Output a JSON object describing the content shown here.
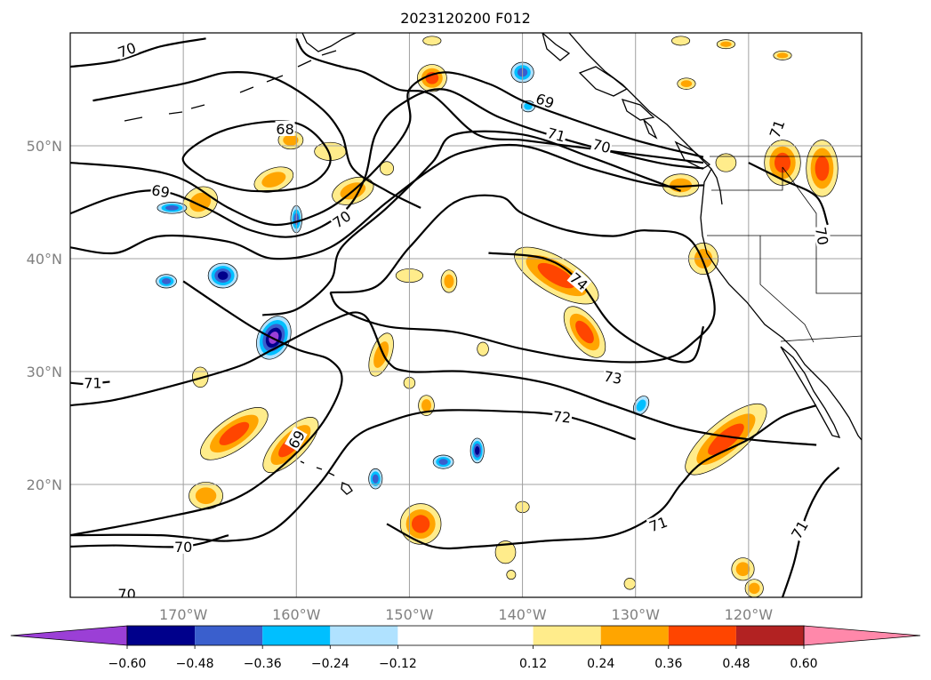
{
  "title": "2023120200 F012",
  "lon_ticks": [
    "170°W",
    "160°W",
    "150°W",
    "140°W",
    "130°W",
    "120°W"
  ],
  "lat_ticks": [
    "50°N",
    "40°N",
    "30°N",
    "20°N"
  ],
  "contour_labels": [
    {
      "text": "70",
      "lon": -175.0,
      "lat": 58.5,
      "rot": -20
    },
    {
      "text": "68",
      "lon": -161.0,
      "lat": 51.5,
      "rot": 0
    },
    {
      "text": "69",
      "lon": -172.0,
      "lat": 46.0,
      "rot": 10
    },
    {
      "text": "70",
      "lon": -156.0,
      "lat": 43.5,
      "rot": -35
    },
    {
      "text": "69",
      "lon": -138.0,
      "lat": 54.0,
      "rot": 20
    },
    {
      "text": "71",
      "lon": -137.0,
      "lat": 51.0,
      "rot": 15
    },
    {
      "text": "70",
      "lon": -133.0,
      "lat": 50.0,
      "rot": 15
    },
    {
      "text": "71",
      "lon": -117.5,
      "lat": 51.5,
      "rot": -70
    },
    {
      "text": "70",
      "lon": -113.5,
      "lat": 42.0,
      "rot": 80
    },
    {
      "text": "74",
      "lon": -135.0,
      "lat": 38.0,
      "rot": 40
    },
    {
      "text": "73",
      "lon": -132.0,
      "lat": 29.5,
      "rot": 10
    },
    {
      "text": "72",
      "lon": -136.5,
      "lat": 26.0,
      "rot": 5
    },
    {
      "text": "71",
      "lon": -178.0,
      "lat": 29.0,
      "rot": 0
    },
    {
      "text": "69",
      "lon": -160.0,
      "lat": 24.0,
      "rot": -60
    },
    {
      "text": "71",
      "lon": -128.0,
      "lat": 16.5,
      "rot": -20
    },
    {
      "text": "71",
      "lon": -115.5,
      "lat": 16.0,
      "rot": -60
    },
    {
      "text": "70",
      "lon": -170.0,
      "lat": 14.5,
      "rot": 0
    },
    {
      "text": "70",
      "lon": -175.0,
      "lat": 10.3,
      "rot": 0
    }
  ],
  "colorbar": {
    "levels": [
      -0.72,
      -0.6,
      -0.48,
      -0.36,
      -0.24,
      -0.12,
      0.12,
      0.24,
      0.36,
      0.48,
      0.6,
      0.72
    ],
    "colors": [
      "#9b3fd6",
      "#00008b",
      "#3a5fcd",
      "#00bfff",
      "#b0e2ff",
      "#ffffff",
      "#ffec8b",
      "#ffa500",
      "#ff4500",
      "#b22222",
      "#ff88aa"
    ],
    "extend": "both",
    "tick_labels": [
      "−0.60",
      "−0.48",
      "−0.36",
      "−0.24",
      "−0.12",
      "0.12",
      "0.24",
      "0.36",
      "0.48",
      "0.60"
    ]
  },
  "anomalies": [
    {
      "lon": -168.5,
      "lat": 45.0,
      "level": 2,
      "a": 1.6,
      "b": 1.3,
      "rot": -30
    },
    {
      "lon": -162.0,
      "lat": 47.0,
      "level": 2,
      "a": 1.8,
      "b": 1.0,
      "rot": -20
    },
    {
      "lon": -157.0,
      "lat": 49.5,
      "level": 1,
      "a": 1.4,
      "b": 0.8,
      "rot": 0
    },
    {
      "lon": -160.5,
      "lat": 50.5,
      "level": 2,
      "a": 1.1,
      "b": 0.8,
      "rot": 0
    },
    {
      "lon": -155.0,
      "lat": 46.0,
      "level": 2,
      "a": 1.9,
      "b": 1.1,
      "rot": -20
    },
    {
      "lon": -171.0,
      "lat": 44.5,
      "level": -3,
      "a": 1.3,
      "b": 0.5,
      "rot": 0
    },
    {
      "lon": -160.0,
      "lat": 43.5,
      "level": -3,
      "a": 0.5,
      "b": 1.2,
      "rot": 0
    },
    {
      "lon": -166.5,
      "lat": 38.5,
      "level": -4,
      "a": 1.3,
      "b": 1.1,
      "rot": 0
    },
    {
      "lon": -171.5,
      "lat": 38.0,
      "level": -3,
      "a": 0.9,
      "b": 0.6,
      "rot": 0
    },
    {
      "lon": -162.0,
      "lat": 33.0,
      "level": -5,
      "a": 1.4,
      "b": 2.0,
      "rot": 25
    },
    {
      "lon": -168.5,
      "lat": 29.5,
      "level": 1,
      "a": 0.7,
      "b": 0.9,
      "rot": 0
    },
    {
      "lon": -165.5,
      "lat": 24.5,
      "level": 3,
      "a": 3.5,
      "b": 1.4,
      "rot": -35
    },
    {
      "lon": -160.5,
      "lat": 23.5,
      "level": 3,
      "a": 3.2,
      "b": 1.3,
      "rot": -45
    },
    {
      "lon": -168.0,
      "lat": 19.0,
      "level": 2,
      "a": 1.5,
      "b": 1.2,
      "rot": 0
    },
    {
      "lon": -152.5,
      "lat": 31.5,
      "level": 2,
      "a": 0.9,
      "b": 2.0,
      "rot": 20
    },
    {
      "lon": -150.0,
      "lat": 38.5,
      "level": 1,
      "a": 1.2,
      "b": 0.6,
      "rot": 0
    },
    {
      "lon": -146.5,
      "lat": 38.0,
      "level": 2,
      "a": 0.7,
      "b": 1.0,
      "rot": 0
    },
    {
      "lon": -148.5,
      "lat": 27.0,
      "level": 2,
      "a": 0.7,
      "b": 0.9,
      "rot": 0
    },
    {
      "lon": -149.0,
      "lat": 16.5,
      "level": 3,
      "a": 1.8,
      "b": 1.8,
      "rot": 0
    },
    {
      "lon": -141.5,
      "lat": 14.0,
      "level": 1,
      "a": 0.9,
      "b": 1.0,
      "rot": 0
    },
    {
      "lon": -148.0,
      "lat": 56.0,
      "level": 3,
      "a": 1.3,
      "b": 1.2,
      "rot": 0
    },
    {
      "lon": -144.0,
      "lat": 23.0,
      "level": -4,
      "a": 0.6,
      "b": 1.1,
      "rot": 0
    },
    {
      "lon": -147.0,
      "lat": 22.0,
      "level": -3,
      "a": 0.9,
      "b": 0.6,
      "rot": 0
    },
    {
      "lon": -153.0,
      "lat": 20.5,
      "level": -3,
      "a": 0.6,
      "b": 0.9,
      "rot": 0
    },
    {
      "lon": -140.0,
      "lat": 56.5,
      "level": -3,
      "a": 1.0,
      "b": 0.9,
      "rot": 0
    },
    {
      "lon": -139.5,
      "lat": 53.5,
      "level": -2,
      "a": 0.6,
      "b": 0.5,
      "rot": 0
    },
    {
      "lon": -137.0,
      "lat": 38.5,
      "level": 3,
      "a": 4.2,
      "b": 1.6,
      "rot": 30
    },
    {
      "lon": -134.5,
      "lat": 33.5,
      "level": 3,
      "a": 2.6,
      "b": 1.3,
      "rot": 55
    },
    {
      "lon": -126.0,
      "lat": 46.5,
      "level": 2,
      "a": 1.6,
      "b": 1.0,
      "rot": 0
    },
    {
      "lon": -124.0,
      "lat": 40.0,
      "level": 2,
      "a": 1.3,
      "b": 1.4,
      "rot": 0
    },
    {
      "lon": -122.0,
      "lat": 24.0,
      "level": 3,
      "a": 4.5,
      "b": 1.6,
      "rot": -40
    },
    {
      "lon": -122.0,
      "lat": 48.5,
      "level": 1,
      "a": 0.9,
      "b": 0.8,
      "rot": 0
    },
    {
      "lon": -117.0,
      "lat": 48.5,
      "level": 3,
      "a": 1.6,
      "b": 2.0,
      "rot": 0
    },
    {
      "lon": -113.5,
      "lat": 48.0,
      "level": 3,
      "a": 1.4,
      "b": 2.5,
      "rot": 0
    },
    {
      "lon": -120.5,
      "lat": 12.5,
      "level": 2,
      "a": 1.0,
      "b": 1.0,
      "rot": 0
    },
    {
      "lon": -119.5,
      "lat": 10.8,
      "level": 2,
      "a": 0.8,
      "b": 0.8,
      "rot": 0
    },
    {
      "lon": -140.0,
      "lat": 18.0,
      "level": 1,
      "a": 0.6,
      "b": 0.5,
      "rot": 0
    },
    {
      "lon": -143.5,
      "lat": 32.0,
      "level": 1,
      "a": 0.5,
      "b": 0.6,
      "rot": 0
    },
    {
      "lon": -129.5,
      "lat": 27.0,
      "level": -2,
      "a": 0.6,
      "b": 0.9,
      "rot": 30
    },
    {
      "lon": -130.5,
      "lat": 11.2,
      "level": 1,
      "a": 0.5,
      "b": 0.5,
      "rot": 0
    },
    {
      "lon": -152.0,
      "lat": 48.0,
      "level": 1,
      "a": 0.6,
      "b": 0.6,
      "rot": 0
    },
    {
      "lon": -150.0,
      "lat": 29.0,
      "level": 1,
      "a": 0.5,
      "b": 0.5,
      "rot": 0
    },
    {
      "lon": -141.0,
      "lat": 12.0,
      "level": 1,
      "a": 0.4,
      "b": 0.4,
      "rot": 0
    },
    {
      "lon": -148.0,
      "lat": 59.3,
      "level": 1,
      "a": 0.8,
      "b": 0.4,
      "rot": 0
    },
    {
      "lon": -126.0,
      "lat": 59.3,
      "level": 1,
      "a": 0.8,
      "b": 0.4,
      "rot": 0
    },
    {
      "lon": -122.0,
      "lat": 59.0,
      "level": 2,
      "a": 0.8,
      "b": 0.4,
      "rot": 0
    },
    {
      "lon": -117.0,
      "lat": 58.0,
      "level": 2,
      "a": 0.8,
      "b": 0.4,
      "rot": 0
    },
    {
      "lon": -125.5,
      "lat": 55.5,
      "level": 2,
      "a": 0.8,
      "b": 0.5,
      "rot": 0
    }
  ],
  "contours": [
    {
      "value": 70,
      "pts": [
        [
          -180,
          57.0
        ],
        [
          -176,
          57.5
        ],
        [
          -172,
          58.8
        ],
        [
          -168,
          59.5
        ]
      ]
    },
    {
      "value": 70,
      "pts": [
        [
          -160,
          59.5
        ],
        [
          -159,
          58.0
        ],
        [
          -156,
          57.0
        ],
        [
          -154,
          56.5
        ],
        [
          -151,
          55.0
        ],
        [
          -148,
          54.5
        ],
        [
          -144,
          51.0
        ],
        [
          -140,
          50.5
        ],
        [
          -136,
          50.0
        ],
        [
          -132,
          49.5
        ],
        [
          -128,
          49.0
        ],
        [
          -124,
          48.5
        ]
      ]
    },
    {
      "value": 69,
      "pts": [
        [
          -178,
          54.0
        ],
        [
          -170,
          55.5
        ],
        [
          -166,
          56.5
        ],
        [
          -162,
          56.0
        ],
        [
          -158,
          53.5
        ],
        [
          -156,
          51.0
        ],
        [
          -155,
          48.0
        ],
        [
          -152,
          46.0
        ],
        [
          -149,
          44.5
        ]
      ]
    },
    {
      "value": 69,
      "pts": [
        [
          -180,
          48.5
        ],
        [
          -174,
          48.0
        ],
        [
          -170,
          47.0
        ],
        [
          -166,
          44.5
        ],
        [
          -162,
          43.0
        ],
        [
          -158,
          44.0
        ],
        [
          -155,
          46.0
        ],
        [
          -152,
          49.0
        ],
        [
          -150,
          52.0
        ],
        [
          -150,
          55.0
        ],
        [
          -147,
          56.5
        ],
        [
          -143,
          55.5
        ],
        [
          -140,
          54.0
        ],
        [
          -136,
          52.5
        ],
        [
          -130,
          50.5
        ],
        [
          -124,
          49.0
        ]
      ]
    },
    {
      "value": 68,
      "pts": [
        [
          -168,
          47.0
        ],
        [
          -170,
          49.0
        ],
        [
          -166,
          51.5
        ],
        [
          -160,
          52.0
        ],
        [
          -157,
          49.0
        ],
        [
          -159,
          46.5
        ],
        [
          -164,
          46.0
        ],
        [
          -168,
          47.0
        ]
      ]
    },
    {
      "value": 70,
      "pts": [
        [
          -180,
          44.0
        ],
        [
          -176,
          45.5
        ],
        [
          -172,
          46.0
        ],
        [
          -168,
          44.5
        ],
        [
          -164,
          42.5
        ],
        [
          -160,
          42.0
        ],
        [
          -156,
          44.0
        ],
        [
          -154,
          47.0
        ],
        [
          -153,
          51.0
        ],
        [
          -151,
          53.5
        ],
        [
          -147,
          55.0
        ],
        [
          -142,
          52.5
        ],
        [
          -136,
          50.5
        ],
        [
          -128,
          48.5
        ],
        [
          -124,
          48.0
        ]
      ]
    },
    {
      "value": 71,
      "pts": [
        [
          -180,
          41.0
        ],
        [
          -176,
          40.5
        ],
        [
          -172,
          42.0
        ],
        [
          -166,
          41.5
        ],
        [
          -162,
          40.0
        ],
        [
          -157,
          41.0
        ],
        [
          -152,
          45.0
        ],
        [
          -148,
          48.0
        ],
        [
          -145,
          49.5
        ],
        [
          -140,
          50.0
        ],
        [
          -134,
          48.0
        ],
        [
          -128,
          46.5
        ],
        [
          -124,
          46.5
        ]
      ]
    },
    {
      "value": 71,
      "pts": [
        [
          -170,
          38.0
        ],
        [
          -164,
          34.0
        ],
        [
          -160,
          32.0
        ],
        [
          -157,
          31.0
        ],
        [
          -156,
          29.0
        ],
        [
          -158,
          25.0
        ],
        [
          -162,
          21.0
        ],
        [
          -166,
          18.5
        ],
        [
          -172,
          17.0
        ],
        [
          -180,
          15.5
        ]
      ]
    },
    {
      "value": 72,
      "pts": [
        [
          -180,
          27.0
        ],
        [
          -176,
          27.5
        ],
        [
          -170,
          29.0
        ],
        [
          -165,
          30.5
        ],
        [
          -162,
          32.0
        ],
        [
          -157,
          34.5
        ],
        [
          -154,
          35.0
        ],
        [
          -152,
          31.0
        ],
        [
          -150,
          30.0
        ],
        [
          -145,
          30.0
        ],
        [
          -138,
          29.0
        ],
        [
          -132,
          27.0
        ],
        [
          -126,
          25.0
        ],
        [
          -120,
          24.0
        ],
        [
          -114,
          23.5
        ]
      ]
    },
    {
      "value": 73,
      "pts": [
        [
          -157,
          37.0
        ],
        [
          -153,
          37.5
        ],
        [
          -150,
          41.0
        ],
        [
          -146,
          45.0
        ],
        [
          -142,
          45.5
        ],
        [
          -140,
          44.0
        ],
        [
          -136,
          42.5
        ],
        [
          -132,
          42.0
        ],
        [
          -129,
          42.5
        ],
        [
          -125,
          41.5
        ],
        [
          -123,
          35.5
        ],
        [
          -125,
          32.5
        ],
        [
          -128,
          31.0
        ],
        [
          -134,
          31.0
        ],
        [
          -140,
          32.0
        ],
        [
          -146,
          33.5
        ],
        [
          -152,
          34.0
        ],
        [
          -156,
          35.5
        ],
        [
          -157,
          37.0
        ]
      ]
    },
    {
      "value": 72,
      "pts": [
        [
          -163,
          35.0
        ],
        [
          -160,
          35.5
        ],
        [
          -157,
          38.0
        ],
        [
          -156,
          41.0
        ],
        [
          -152,
          44.5
        ],
        [
          -148,
          48.5
        ],
        [
          -146,
          51.0
        ],
        [
          -140,
          51.0
        ],
        [
          -134,
          49.0
        ],
        [
          -130,
          47.5
        ],
        [
          -126,
          46.0
        ]
      ]
    },
    {
      "value": 74,
      "pts": [
        [
          -143,
          40.5
        ],
        [
          -138,
          40.0
        ],
        [
          -135,
          38.0
        ],
        [
          -132,
          34.0
        ],
        [
          -128,
          31.5
        ],
        [
          -125,
          31.0
        ],
        [
          -124,
          34.0
        ]
      ]
    },
    {
      "value": 71,
      "pts": [
        [
          -180,
          15.5
        ],
        [
          -172,
          15.5
        ],
        [
          -166,
          15.0
        ],
        [
          -162,
          16.0
        ],
        [
          -158,
          20.0
        ],
        [
          -155,
          24.0
        ],
        [
          -152,
          25.5
        ],
        [
          -148,
          26.5
        ],
        [
          -142,
          26.5
        ],
        [
          -136,
          26.0
        ],
        [
          -130,
          24.0
        ]
      ]
    },
    {
      "value": 71,
      "pts": [
        [
          -152,
          16.5
        ],
        [
          -148,
          14.5
        ],
        [
          -144,
          14.5
        ],
        [
          -138,
          15.0
        ],
        [
          -132,
          15.5
        ],
        [
          -128,
          17.5
        ],
        [
          -126,
          20.0
        ],
        [
          -124,
          22.0
        ],
        [
          -120,
          24.0
        ],
        [
          -117,
          26.0
        ],
        [
          -114,
          27.0
        ]
      ]
    },
    {
      "value": 70,
      "pts": [
        [
          -180,
          14.5
        ],
        [
          -176,
          14.6
        ],
        [
          -170,
          14.5
        ],
        [
          -166,
          15.5
        ]
      ]
    },
    {
      "value": 71,
      "pts": [
        [
          -117,
          10.0
        ],
        [
          -116,
          13.0
        ],
        [
          -115,
          17.0
        ],
        [
          -113.5,
          20.0
        ],
        [
          -112,
          21.5
        ]
      ]
    },
    {
      "value": 71,
      "pts": [
        [
          -180.0,
          29.0
        ],
        [
          -178.5,
          28.9
        ],
        [
          -176.5,
          29.1
        ]
      ]
    },
    {
      "value": 71,
      "pts": [
        [
          -120,
          48.5
        ],
        [
          -117,
          47.0
        ],
        [
          -114,
          45.5
        ],
        [
          -113,
          43.0
        ]
      ]
    }
  ]
}
